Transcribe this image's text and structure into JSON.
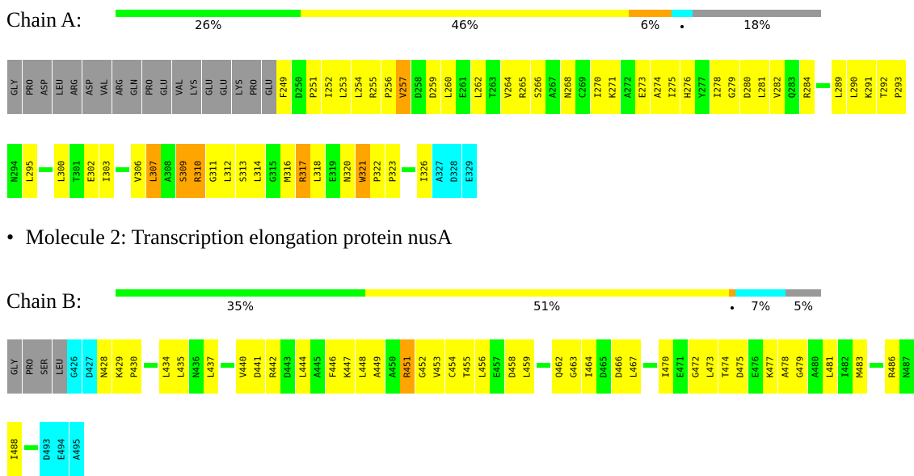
{
  "colors": {
    "green": "#00ff00",
    "yellow": "#ffff00",
    "orange": "#ffa500",
    "cyan": "#00ffff",
    "gray": "#999999"
  },
  "chain_a": {
    "label": "Chain A:",
    "quality": [
      {
        "color": "green",
        "frac": 0.26,
        "pct": "26%"
      },
      {
        "color": "yellow",
        "frac": 0.46,
        "pct": "46%"
      },
      {
        "color": "orange",
        "frac": 0.06,
        "pct": "6%"
      },
      {
        "color": "cyan",
        "frac": 0.03,
        "pct": "",
        "dot": true
      },
      {
        "color": "gray",
        "frac": 0.18,
        "pct": "18%"
      }
    ],
    "rows": [
      {
        "residues": [
          [
            "GLY",
            "gray"
          ],
          [
            "PRO",
            "gray"
          ],
          [
            "ASP",
            "gray"
          ],
          [
            "LEU",
            "gray"
          ],
          [
            "ARG",
            "gray"
          ],
          [
            "ASP",
            "gray"
          ],
          [
            "VAL",
            "gray"
          ],
          [
            "ARG",
            "gray"
          ],
          [
            "GLN",
            "gray"
          ],
          [
            "PRO",
            "gray"
          ],
          [
            "GLU",
            "gray"
          ],
          [
            "VAL",
            "gray"
          ],
          [
            "LYS",
            "gray"
          ],
          [
            "GLU",
            "gray"
          ],
          [
            "GLU",
            "gray"
          ],
          [
            "LYS",
            "gray"
          ],
          [
            "PRO",
            "gray"
          ],
          [
            "GLU",
            "gray"
          ],
          [
            "F249",
            "yellow"
          ],
          [
            "D250",
            "green"
          ],
          [
            "P251",
            "yellow"
          ],
          [
            "I252",
            "yellow"
          ],
          [
            "L253",
            "yellow"
          ],
          [
            "L254",
            "yellow"
          ],
          [
            "R255",
            "yellow"
          ],
          [
            "P256",
            "yellow"
          ],
          [
            "V257",
            "orange"
          ],
          [
            "D258",
            "green"
          ],
          [
            "D259",
            "yellow"
          ],
          [
            "L260",
            "yellow"
          ],
          [
            "E261",
            "green"
          ],
          [
            "L262",
            "yellow"
          ],
          [
            "T263",
            "green"
          ],
          [
            "V264",
            "yellow"
          ],
          [
            "R265",
            "yellow"
          ],
          [
            "S266",
            "yellow"
          ],
          [
            "A267",
            "green"
          ],
          [
            "N268",
            "yellow"
          ],
          [
            "C269",
            "green"
          ],
          [
            "I270",
            "yellow"
          ],
          [
            "K271",
            "yellow"
          ],
          [
            "A272",
            "green"
          ],
          [
            "E273",
            "yellow"
          ],
          [
            "A274",
            "yellow"
          ],
          [
            "I275",
            "yellow"
          ],
          [
            "H276",
            "yellow"
          ],
          [
            "Y277",
            "green"
          ],
          [
            "I278",
            "yellow"
          ],
          [
            "G279",
            "yellow"
          ],
          [
            "D280",
            "yellow"
          ],
          [
            "L281",
            "yellow"
          ],
          [
            "V282",
            "yellow"
          ],
          [
            "Q283",
            "green"
          ],
          [
            "R284",
            "yellow"
          ],
          null,
          [
            "L289",
            "yellow"
          ],
          [
            "L290",
            "yellow"
          ],
          [
            "K291",
            "yellow"
          ],
          [
            "T292",
            "yellow"
          ],
          [
            "P293",
            "yellow"
          ]
        ]
      },
      {
        "residues": [
          [
            "N294",
            "green"
          ],
          [
            "L295",
            "yellow"
          ],
          null,
          [
            "L300",
            "yellow"
          ],
          [
            "T301",
            "green"
          ],
          [
            "E302",
            "yellow"
          ],
          [
            "I303",
            "yellow"
          ],
          null,
          [
            "V306",
            "yellow"
          ],
          [
            "L307",
            "orange"
          ],
          [
            "A308",
            "green"
          ],
          [
            "S309",
            "orange"
          ],
          [
            "R310",
            "orange"
          ],
          [
            "G311",
            "yellow"
          ],
          [
            "L312",
            "yellow"
          ],
          [
            "S313",
            "yellow"
          ],
          [
            "L314",
            "yellow"
          ],
          [
            "G315",
            "green"
          ],
          [
            "M316",
            "yellow"
          ],
          [
            "R317",
            "orange"
          ],
          [
            "L318",
            "yellow"
          ],
          [
            "E319",
            "green"
          ],
          [
            "N320",
            "yellow"
          ],
          [
            "W321",
            "orange"
          ],
          [
            "P322",
            "yellow"
          ],
          [
            "P323",
            "yellow"
          ],
          null,
          [
            "I326",
            "yellow"
          ],
          [
            "A327",
            "cyan"
          ],
          [
            "D328",
            "cyan"
          ],
          [
            "E329",
            "cyan"
          ]
        ]
      }
    ]
  },
  "molecule2": {
    "bullet": "•",
    "text": "Molecule 2: Transcription elongation protein nusA"
  },
  "chain_b": {
    "label": "Chain B:",
    "quality": [
      {
        "color": "green",
        "frac": 0.35,
        "pct": "35%"
      },
      {
        "color": "yellow",
        "frac": 0.51,
        "pct": "51%"
      },
      {
        "color": "orange",
        "frac": 0.01,
        "pct": "",
        "dot": true
      },
      {
        "color": "cyan",
        "frac": 0.07,
        "pct": "7%"
      },
      {
        "color": "gray",
        "frac": 0.05,
        "pct": "5%"
      }
    ],
    "rows": [
      {
        "residues": [
          [
            "GLY",
            "gray"
          ],
          [
            "PRO",
            "gray"
          ],
          [
            "SER",
            "gray"
          ],
          [
            "LEU",
            "gray"
          ],
          [
            "G426",
            "cyan"
          ],
          [
            "D427",
            "cyan"
          ],
          [
            "N428",
            "yellow"
          ],
          [
            "K429",
            "yellow"
          ],
          [
            "P430",
            "yellow"
          ],
          null,
          [
            "L434",
            "yellow"
          ],
          [
            "L435",
            "yellow"
          ],
          [
            "N436",
            "green"
          ],
          [
            "L437",
            "yellow"
          ],
          null,
          [
            "V440",
            "yellow"
          ],
          [
            "D441",
            "yellow"
          ],
          [
            "R442",
            "yellow"
          ],
          [
            "D443",
            "green"
          ],
          [
            "L444",
            "yellow"
          ],
          [
            "A445",
            "green"
          ],
          [
            "F446",
            "yellow"
          ],
          [
            "K447",
            "yellow"
          ],
          [
            "L448",
            "yellow"
          ],
          [
            "A449",
            "yellow"
          ],
          [
            "A450",
            "green"
          ],
          [
            "R451",
            "orange"
          ],
          [
            "G452",
            "yellow"
          ],
          [
            "V453",
            "yellow"
          ],
          [
            "C454",
            "yellow"
          ],
          [
            "T455",
            "yellow"
          ],
          [
            "L456",
            "yellow"
          ],
          [
            "E457",
            "green"
          ],
          [
            "D458",
            "yellow"
          ],
          [
            "L459",
            "yellow"
          ],
          null,
          [
            "Q462",
            "yellow"
          ],
          [
            "G463",
            "yellow"
          ],
          [
            "I464",
            "yellow"
          ],
          [
            "D465",
            "green"
          ],
          [
            "D466",
            "yellow"
          ],
          [
            "L467",
            "yellow"
          ],
          null,
          [
            "I470",
            "yellow"
          ],
          [
            "E471",
            "green"
          ],
          [
            "G472",
            "yellow"
          ],
          [
            "L473",
            "yellow"
          ],
          [
            "T474",
            "yellow"
          ],
          [
            "D475",
            "yellow"
          ],
          [
            "E476",
            "green"
          ],
          [
            "K477",
            "yellow"
          ],
          [
            "A478",
            "yellow"
          ],
          [
            "G479",
            "yellow"
          ],
          [
            "A480",
            "green"
          ],
          [
            "L481",
            "yellow"
          ],
          [
            "I482",
            "green"
          ],
          [
            "M483",
            "yellow"
          ],
          null,
          [
            "R486",
            "yellow"
          ],
          [
            "N487",
            "green"
          ]
        ]
      },
      {
        "residues": [
          [
            "I488",
            "yellow"
          ],
          null,
          [
            "D493",
            "cyan"
          ],
          [
            "E494",
            "cyan"
          ],
          [
            "A495",
            "cyan"
          ]
        ]
      }
    ]
  }
}
